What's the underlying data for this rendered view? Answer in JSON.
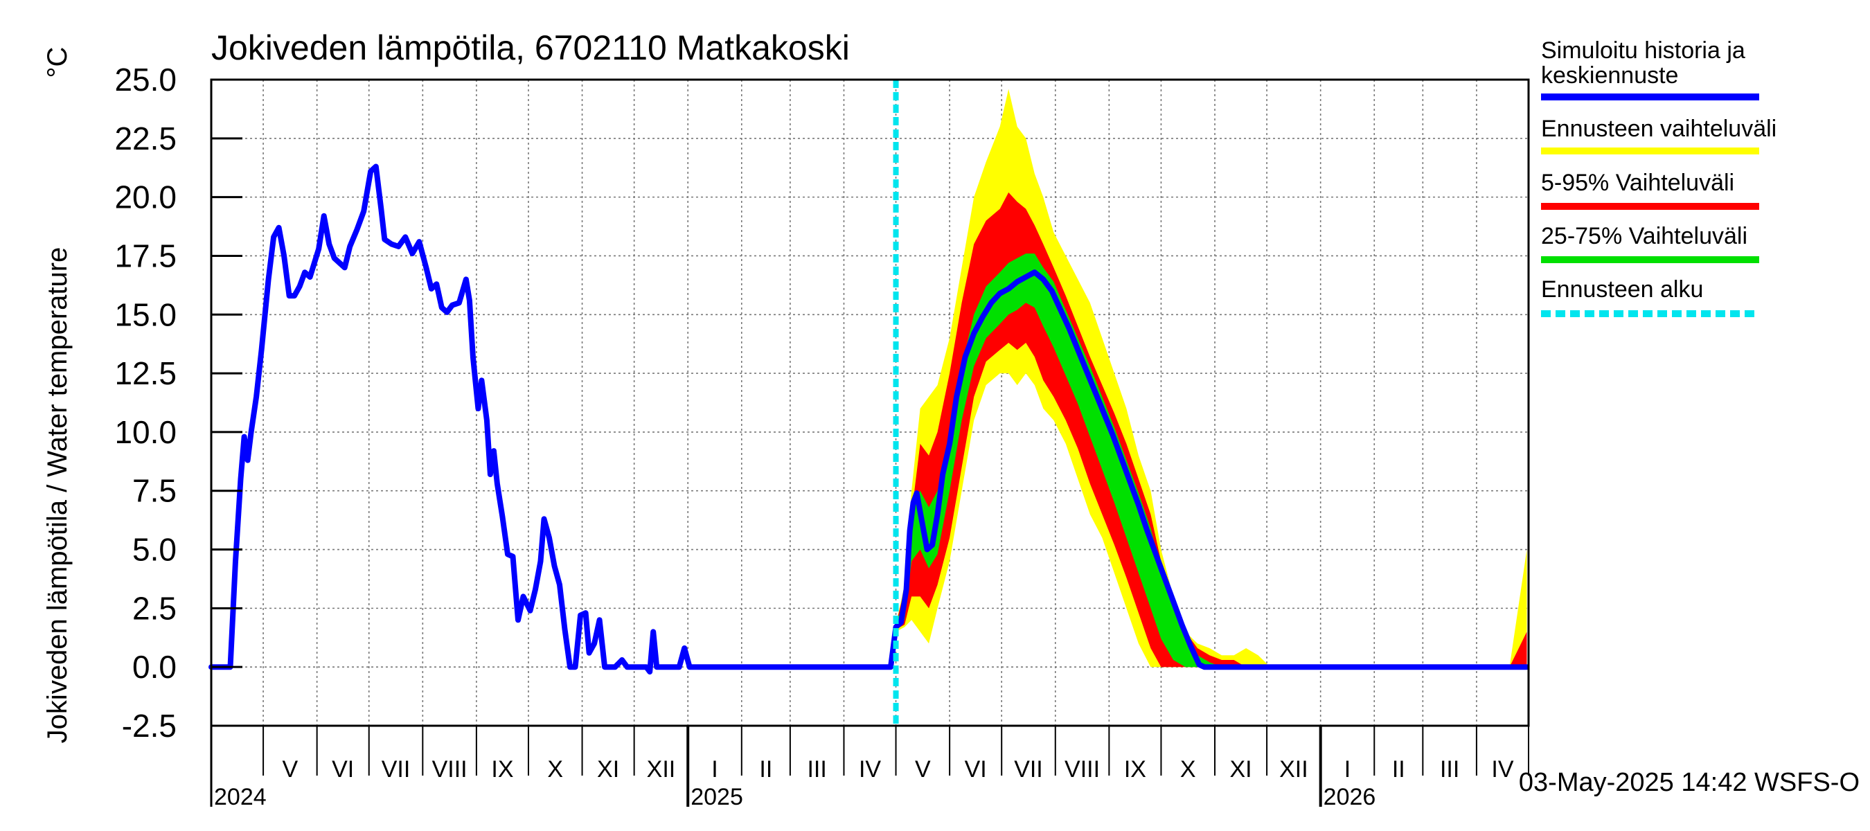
{
  "chart_data": {
    "type": "line",
    "title": "Jokiveden lämpötila, 6702110 Matkakoski",
    "ylabel": "Jokiveden lämpötila / Water temperature",
    "yunit": "°C",
    "xlim": [
      "2024-04-01",
      "2026-05-01"
    ],
    "ylim": [
      -2.5,
      25.0
    ],
    "yticks": [
      "25.0",
      "22.5",
      "20.0",
      "17.5",
      "15.0",
      "12.5",
      "10.0",
      "7.5",
      "5.0",
      "2.5",
      "0.0",
      "-2.5"
    ],
    "yticks_values": [
      25.0,
      22.5,
      20.0,
      17.5,
      15.0,
      12.5,
      10.0,
      7.5,
      5.0,
      2.5,
      0.0,
      -2.5
    ],
    "grid": true,
    "legend_position": "right",
    "months": [
      {
        "label": "V",
        "start": "2024-05-01",
        "end": "2024-06-01"
      },
      {
        "label": "VI",
        "start": "2024-06-01",
        "end": "2024-07-01"
      },
      {
        "label": "VII",
        "start": "2024-07-01",
        "end": "2024-08-01"
      },
      {
        "label": "VIII",
        "start": "2024-08-01",
        "end": "2024-09-01"
      },
      {
        "label": "IX",
        "start": "2024-09-01",
        "end": "2024-10-01"
      },
      {
        "label": "X",
        "start": "2024-10-01",
        "end": "2024-11-01"
      },
      {
        "label": "XI",
        "start": "2024-11-01",
        "end": "2024-12-01"
      },
      {
        "label": "XII",
        "start": "2024-12-01",
        "end": "2025-01-01"
      },
      {
        "label": "I",
        "start": "2025-01-01",
        "end": "2025-02-01"
      },
      {
        "label": "II",
        "start": "2025-02-01",
        "end": "2025-03-01"
      },
      {
        "label": "III",
        "start": "2025-03-01",
        "end": "2025-04-01"
      },
      {
        "label": "IV",
        "start": "2025-04-01",
        "end": "2025-05-01"
      },
      {
        "label": "V",
        "start": "2025-05-01",
        "end": "2025-06-01"
      },
      {
        "label": "VI",
        "start": "2025-06-01",
        "end": "2025-07-01"
      },
      {
        "label": "VII",
        "start": "2025-07-01",
        "end": "2025-08-01"
      },
      {
        "label": "VIII",
        "start": "2025-08-01",
        "end": "2025-09-01"
      },
      {
        "label": "IX",
        "start": "2025-09-01",
        "end": "2025-10-01"
      },
      {
        "label": "X",
        "start": "2025-10-01",
        "end": "2025-11-01"
      },
      {
        "label": "XI",
        "start": "2025-11-01",
        "end": "2025-12-01"
      },
      {
        "label": "XII",
        "start": "2025-12-01",
        "end": "2026-01-01"
      },
      {
        "label": "I",
        "start": "2026-01-01",
        "end": "2026-02-01"
      },
      {
        "label": "II",
        "start": "2026-02-01",
        "end": "2026-03-01"
      },
      {
        "label": "III",
        "start": "2026-03-01",
        "end": "2026-04-01"
      },
      {
        "label": "IV",
        "start": "2026-04-01",
        "end": "2026-05-01"
      }
    ],
    "years": [
      {
        "label": "2024",
        "date": "2024-04-01"
      },
      {
        "label": "2025",
        "date": "2025-01-01"
      },
      {
        "label": "2026",
        "date": "2026-01-01"
      }
    ],
    "forecast_start": "2025-05-01",
    "legend": [
      {
        "label": "Simuloitu historia ja keskiennuste",
        "color": "#0000ff",
        "style": "solid"
      },
      {
        "label": "Ennusteen vaihteluväli",
        "color": "#ffff00",
        "style": "solid"
      },
      {
        "label": "5-95% Vaihteluväli",
        "color": "#ff0000",
        "style": "solid"
      },
      {
        "label": "25-75% Vaihteluväli",
        "color": "#00e000",
        "style": "solid"
      },
      {
        "label": "Ennusteen alku",
        "color": "#00e5ee",
        "style": "dashed"
      }
    ],
    "series": [
      {
        "name": "Simuloitu historia ja keskiennuste",
        "color": "#0000ff",
        "points": [
          [
            "2024-04-01",
            0.0
          ],
          [
            "2024-04-12",
            0.0
          ],
          [
            "2024-04-15",
            4.5
          ],
          [
            "2024-04-18",
            8.0
          ],
          [
            "2024-04-20",
            9.8
          ],
          [
            "2024-04-22",
            8.8
          ],
          [
            "2024-04-24",
            10.0
          ],
          [
            "2024-04-27",
            11.5
          ],
          [
            "2024-04-30",
            13.5
          ],
          [
            "2024-05-04",
            16.5
          ],
          [
            "2024-05-07",
            18.3
          ],
          [
            "2024-05-10",
            18.7
          ],
          [
            "2024-05-13",
            17.5
          ],
          [
            "2024-05-16",
            15.8
          ],
          [
            "2024-05-19",
            15.8
          ],
          [
            "2024-05-22",
            16.2
          ],
          [
            "2024-05-25",
            16.8
          ],
          [
            "2024-05-28",
            16.6
          ],
          [
            "2024-06-02",
            17.8
          ],
          [
            "2024-06-05",
            19.2
          ],
          [
            "2024-06-08",
            18.0
          ],
          [
            "2024-06-11",
            17.4
          ],
          [
            "2024-06-14",
            17.2
          ],
          [
            "2024-06-17",
            17.0
          ],
          [
            "2024-06-20",
            17.9
          ],
          [
            "2024-06-24",
            18.6
          ],
          [
            "2024-06-28",
            19.4
          ],
          [
            "2024-07-02",
            21.1
          ],
          [
            "2024-07-05",
            21.3
          ],
          [
            "2024-07-08",
            19.5
          ],
          [
            "2024-07-10",
            18.2
          ],
          [
            "2024-07-14",
            18.0
          ],
          [
            "2024-07-18",
            17.9
          ],
          [
            "2024-07-22",
            18.3
          ],
          [
            "2024-07-26",
            17.6
          ],
          [
            "2024-07-30",
            18.1
          ],
          [
            "2024-08-03",
            17.0
          ],
          [
            "2024-08-06",
            16.1
          ],
          [
            "2024-08-09",
            16.3
          ],
          [
            "2024-08-12",
            15.3
          ],
          [
            "2024-08-15",
            15.1
          ],
          [
            "2024-08-18",
            15.4
          ],
          [
            "2024-08-22",
            15.5
          ],
          [
            "2024-08-26",
            16.5
          ],
          [
            "2024-08-28",
            15.6
          ],
          [
            "2024-08-30",
            13.2
          ],
          [
            "2024-09-02",
            11.0
          ],
          [
            "2024-09-04",
            12.2
          ],
          [
            "2024-09-07",
            10.5
          ],
          [
            "2024-09-09",
            8.2
          ],
          [
            "2024-09-11",
            9.2
          ],
          [
            "2024-09-13",
            7.8
          ],
          [
            "2024-09-16",
            6.4
          ],
          [
            "2024-09-19",
            4.8
          ],
          [
            "2024-09-22",
            4.7
          ],
          [
            "2024-09-25",
            2.0
          ],
          [
            "2024-09-28",
            3.0
          ],
          [
            "2024-10-02",
            2.4
          ],
          [
            "2024-10-05",
            3.3
          ],
          [
            "2024-10-08",
            4.5
          ],
          [
            "2024-10-10",
            6.3
          ],
          [
            "2024-10-13",
            5.5
          ],
          [
            "2024-10-16",
            4.3
          ],
          [
            "2024-10-19",
            3.5
          ],
          [
            "2024-10-22",
            1.6
          ],
          [
            "2024-10-25",
            0.0
          ],
          [
            "2024-10-28",
            0.0
          ],
          [
            "2024-10-31",
            2.2
          ],
          [
            "2024-11-03",
            2.3
          ],
          [
            "2024-11-05",
            0.6
          ],
          [
            "2024-11-08",
            1.0
          ],
          [
            "2024-11-11",
            2.0
          ],
          [
            "2024-11-14",
            0.0
          ],
          [
            "2024-11-20",
            0.0
          ],
          [
            "2024-11-24",
            0.3
          ],
          [
            "2024-11-27",
            0.0
          ],
          [
            "2024-12-08",
            0.0
          ],
          [
            "2024-12-10",
            -0.2
          ],
          [
            "2024-12-12",
            1.5
          ],
          [
            "2024-12-14",
            0.0
          ],
          [
            "2024-12-27",
            0.0
          ],
          [
            "2024-12-30",
            0.8
          ],
          [
            "2025-01-02",
            0.0
          ],
          [
            "2025-04-28",
            0.0
          ],
          [
            "2025-05-01",
            1.7
          ],
          [
            "2025-05-04",
            1.9
          ],
          [
            "2025-05-07",
            3.3
          ],
          [
            "2025-05-09",
            5.8
          ],
          [
            "2025-05-11",
            7.0
          ],
          [
            "2025-05-13",
            7.4
          ],
          [
            "2025-05-16",
            6.2
          ],
          [
            "2025-05-19",
            5.0
          ],
          [
            "2025-05-22",
            5.2
          ],
          [
            "2025-05-25",
            6.5
          ],
          [
            "2025-05-28",
            8.2
          ],
          [
            "2025-06-01",
            9.5
          ],
          [
            "2025-06-05",
            11.5
          ],
          [
            "2025-06-10",
            13.2
          ],
          [
            "2025-06-15",
            14.2
          ],
          [
            "2025-06-20",
            14.9
          ],
          [
            "2025-06-25",
            15.5
          ],
          [
            "2025-06-30",
            15.9
          ],
          [
            "2025-07-05",
            16.1
          ],
          [
            "2025-07-10",
            16.4
          ],
          [
            "2025-07-15",
            16.6
          ],
          [
            "2025-07-20",
            16.8
          ],
          [
            "2025-07-25",
            16.5
          ],
          [
            "2025-07-30",
            16.0
          ],
          [
            "2025-08-04",
            15.2
          ],
          [
            "2025-08-09",
            14.4
          ],
          [
            "2025-08-14",
            13.5
          ],
          [
            "2025-08-19",
            12.6
          ],
          [
            "2025-08-24",
            11.7
          ],
          [
            "2025-08-29",
            10.8
          ],
          [
            "2025-09-03",
            9.9
          ],
          [
            "2025-09-08",
            8.9
          ],
          [
            "2025-09-13",
            7.9
          ],
          [
            "2025-09-18",
            6.9
          ],
          [
            "2025-09-23",
            5.8
          ],
          [
            "2025-09-28",
            4.8
          ],
          [
            "2025-10-03",
            3.8
          ],
          [
            "2025-10-08",
            2.8
          ],
          [
            "2025-10-13",
            1.8
          ],
          [
            "2025-10-18",
            0.9
          ],
          [
            "2025-10-23",
            0.1
          ],
          [
            "2025-10-26",
            0.0
          ],
          [
            "2026-04-30",
            0.0
          ]
        ]
      },
      {
        "name": "Ennusteen vaihteluväli",
        "color": "#ffff00",
        "x": [
          "2025-05-01",
          "2025-05-06",
          "2025-05-10",
          "2025-05-15",
          "2025-05-20",
          "2025-05-25",
          "2025-06-01",
          "2025-06-08",
          "2025-06-15",
          "2025-06-22",
          "2025-06-30",
          "2025-07-05",
          "2025-07-10",
          "2025-07-15",
          "2025-07-20",
          "2025-07-25",
          "2025-07-31",
          "2025-08-07",
          "2025-08-14",
          "2025-08-21",
          "2025-08-28",
          "2025-09-04",
          "2025-09-11",
          "2025-09-18",
          "2025-09-25",
          "2025-10-01",
          "2025-10-08",
          "2025-10-15",
          "2025-10-22",
          "2025-10-29",
          "2025-11-05",
          "2025-11-12",
          "2025-11-19",
          "2025-11-26",
          "2025-12-03",
          "2026-04-20",
          "2026-04-30"
        ],
        "low": [
          1.5,
          1.7,
          2.0,
          1.5,
          1.0,
          2.5,
          4.5,
          7.5,
          10.5,
          12.0,
          12.5,
          12.5,
          12.0,
          12.5,
          12.0,
          11.0,
          10.5,
          9.5,
          8.0,
          6.5,
          5.5,
          4.0,
          2.5,
          1.0,
          0.0,
          0.0,
          0.0,
          0.0,
          0.0,
          0.0,
          0.0,
          0.0,
          0.0,
          0.0,
          0.0,
          0.0,
          0.0
        ],
        "high": [
          1.8,
          3.5,
          7.5,
          11.0,
          11.5,
          12.0,
          14.0,
          17.0,
          20.0,
          21.5,
          23.0,
          24.6,
          23.0,
          22.5,
          21.0,
          20.0,
          18.5,
          17.5,
          16.5,
          15.5,
          14.0,
          12.5,
          11.0,
          9.0,
          7.5,
          5.0,
          3.0,
          1.5,
          1.0,
          0.8,
          0.5,
          0.5,
          0.8,
          0.5,
          0.0,
          0.0,
          5.0
        ]
      },
      {
        "name": "5-95% Vaihteluväli",
        "color": "#ff0000",
        "x": [
          "2025-05-01",
          "2025-05-06",
          "2025-05-10",
          "2025-05-15",
          "2025-05-20",
          "2025-05-25",
          "2025-06-01",
          "2025-06-08",
          "2025-06-15",
          "2025-06-22",
          "2025-06-30",
          "2025-07-05",
          "2025-07-10",
          "2025-07-15",
          "2025-07-20",
          "2025-07-25",
          "2025-07-31",
          "2025-08-07",
          "2025-08-14",
          "2025-08-21",
          "2025-08-28",
          "2025-09-04",
          "2025-09-11",
          "2025-09-18",
          "2025-09-25",
          "2025-10-01",
          "2025-10-08",
          "2025-10-15",
          "2025-10-22",
          "2025-10-29",
          "2025-11-05",
          "2025-11-12",
          "2025-11-19",
          "2025-12-03",
          "2026-04-20",
          "2026-04-30"
        ],
        "low": [
          1.6,
          1.8,
          3.0,
          3.0,
          2.5,
          3.5,
          5.5,
          8.5,
          11.5,
          13.0,
          13.5,
          13.8,
          13.5,
          13.8,
          13.2,
          12.2,
          11.5,
          10.5,
          9.3,
          7.8,
          6.5,
          5.2,
          3.8,
          2.3,
          0.8,
          0.0,
          0.0,
          0.0,
          0.0,
          0.0,
          0.0,
          0.0,
          0.0,
          0.0,
          0.0,
          0.0
        ],
        "high": [
          1.8,
          3.3,
          6.5,
          9.5,
          9.0,
          10.0,
          12.5,
          15.5,
          18.0,
          19.0,
          19.5,
          20.2,
          19.8,
          19.5,
          18.8,
          18.0,
          17.0,
          15.8,
          14.5,
          13.2,
          12.0,
          10.8,
          9.5,
          8.0,
          6.5,
          4.5,
          2.5,
          1.5,
          0.8,
          0.5,
          0.3,
          0.3,
          0.0,
          0.0,
          0.0,
          1.5
        ]
      },
      {
        "name": "25-75% Vaihteluväli",
        "color": "#00e000",
        "x": [
          "2025-05-01",
          "2025-05-06",
          "2025-05-10",
          "2025-05-15",
          "2025-05-20",
          "2025-05-25",
          "2025-06-01",
          "2025-06-08",
          "2025-06-15",
          "2025-06-22",
          "2025-06-30",
          "2025-07-05",
          "2025-07-10",
          "2025-07-15",
          "2025-07-20",
          "2025-07-25",
          "2025-07-31",
          "2025-08-07",
          "2025-08-14",
          "2025-08-21",
          "2025-08-28",
          "2025-09-04",
          "2025-09-11",
          "2025-09-18",
          "2025-09-25",
          "2025-10-01",
          "2025-10-08",
          "2025-10-15",
          "2025-10-22",
          "2025-10-29",
          "2025-11-05",
          "2026-04-30"
        ],
        "low": [
          1.7,
          2.0,
          4.5,
          5.0,
          4.2,
          4.8,
          7.5,
          10.5,
          12.8,
          14.0,
          14.6,
          15.0,
          15.2,
          15.5,
          15.3,
          14.5,
          13.6,
          12.4,
          11.2,
          9.8,
          8.4,
          7.0,
          5.5,
          4.0,
          2.5,
          1.2,
          0.3,
          0.0,
          0.0,
          0.0,
          0.0,
          0.0
        ],
        "high": [
          1.8,
          2.9,
          6.8,
          7.5,
          6.8,
          7.5,
          10.0,
          12.8,
          15.0,
          16.2,
          16.8,
          17.2,
          17.4,
          17.6,
          17.6,
          17.0,
          16.4,
          15.2,
          14.0,
          12.8,
          11.5,
          10.2,
          8.8,
          7.4,
          5.9,
          4.2,
          2.6,
          1.3,
          0.5,
          0.2,
          0.0,
          0.0
        ]
      }
    ]
  },
  "footer": {
    "timestamp": "03-May-2025 14:42 WSFS-O"
  }
}
